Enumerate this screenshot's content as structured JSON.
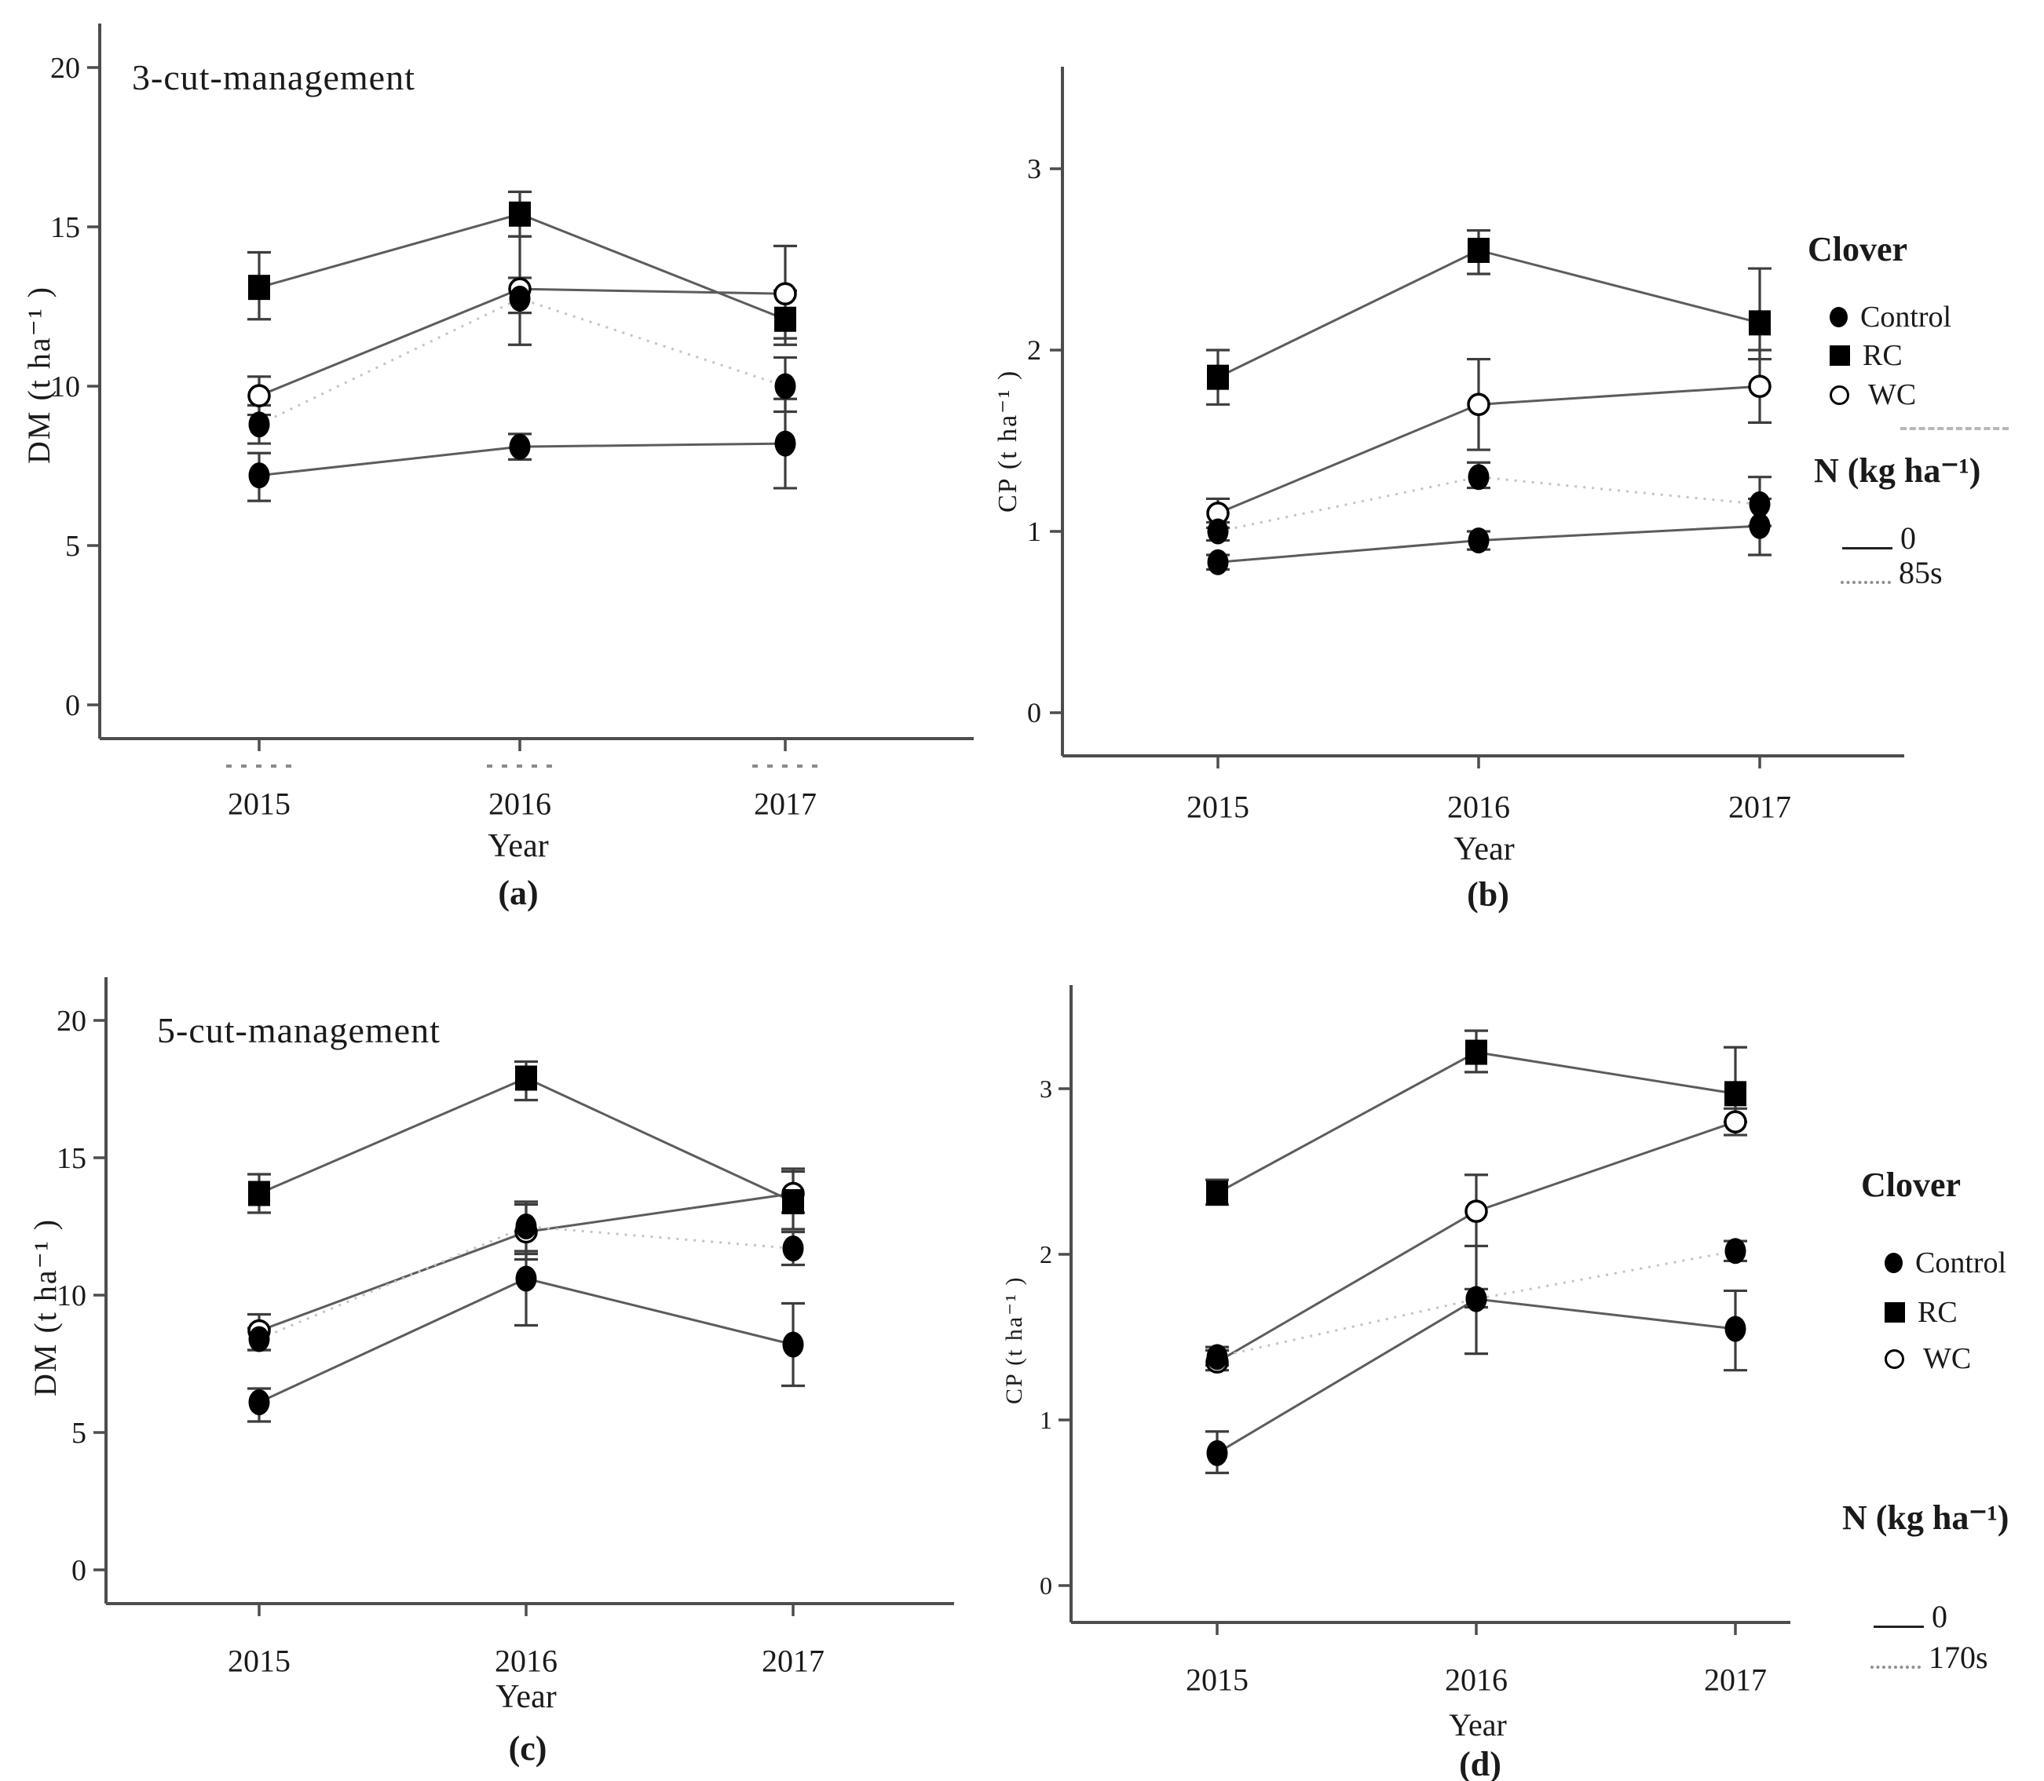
{
  "colors": {
    "axis": "#4d4d4d",
    "solid_line": "#5c5c5c",
    "dotted_line": "#c4c4c4",
    "error_bar": "#3d3d3d",
    "marker": "#000000",
    "artifact": "#8a8a8a"
  },
  "legends": {
    "b": {
      "clover_heading": "Clover",
      "control": "Control",
      "rc": "RC",
      "wc": "WC",
      "n_heading": "N (kg ha⁻¹)",
      "n0": "0",
      "ns": "85s"
    },
    "d": {
      "clover_heading": "Clover",
      "control": "Control",
      "rc": "RC",
      "wc": "WC",
      "n_heading": "N (kg ha⁻¹)",
      "n0": "0",
      "ns": "170s"
    }
  },
  "chart_data": [
    {
      "id": "a",
      "type": "line",
      "title": "3-cut-management",
      "xlabel": "Year",
      "ylabel": "DM (t ha⁻¹ )",
      "caption": "(a)",
      "categories": [
        "2015",
        "2016",
        "2017"
      ],
      "yticks": [
        0,
        5,
        10,
        15,
        20
      ],
      "ylim": [
        0,
        21
      ],
      "grid": false,
      "legend_position": "none",
      "series": [
        {
          "name": "RC, 0 N",
          "clover": "RC",
          "n_rate": "0",
          "marker": "filled-square",
          "line": "solid",
          "values": [
            13.1,
            15.4,
            12.1
          ],
          "err_low": [
            12.1,
            14.7,
            11.3
          ],
          "err_high": [
            14.2,
            16.1,
            13.0
          ]
        },
        {
          "name": "WC, 0 N",
          "clover": "WC",
          "n_rate": "0",
          "marker": "open-circle",
          "line": "solid",
          "values": [
            9.7,
            13.05,
            12.9
          ],
          "err_low": [
            9.1,
            11.3,
            11.5
          ],
          "err_high": [
            10.3,
            14.7,
            14.4
          ]
        },
        {
          "name": "Control, 85s N",
          "clover": "Control",
          "n_rate": "85s",
          "marker": "filled-circle",
          "line": "dotted",
          "values": [
            8.8,
            12.75,
            10.0
          ],
          "err_low": [
            8.2,
            12.3,
            9.2
          ],
          "err_high": [
            9.4,
            13.4,
            10.9
          ]
        },
        {
          "name": "Control, 0 N",
          "clover": "Control",
          "n_rate": "0",
          "marker": "filled-circle",
          "line": "solid",
          "values": [
            7.2,
            8.1,
            8.2
          ],
          "err_low": [
            6.4,
            7.7,
            6.8
          ],
          "err_high": [
            7.9,
            8.5,
            9.6
          ]
        }
      ]
    },
    {
      "id": "b",
      "type": "line",
      "title": "",
      "xlabel": "Year",
      "ylabel": "CP (t ha⁻¹ )",
      "caption": "(b)",
      "categories": [
        "2015",
        "2016",
        "2017"
      ],
      "yticks": [
        0,
        1,
        2,
        3
      ],
      "ylim": [
        0,
        3.5
      ],
      "grid": false,
      "legend_position": "right",
      "series": [
        {
          "name": "RC, 0 N",
          "clover": "RC",
          "n_rate": "0",
          "marker": "filled-square",
          "line": "solid",
          "values": [
            1.85,
            2.55,
            2.15
          ],
          "err_low": [
            1.7,
            2.42,
            1.95
          ],
          "err_high": [
            2.0,
            2.66,
            2.45
          ]
        },
        {
          "name": "WC, 0 N",
          "clover": "WC",
          "n_rate": "0",
          "marker": "open-circle",
          "line": "solid",
          "values": [
            1.1,
            1.7,
            1.8
          ],
          "err_low": [
            1.02,
            1.45,
            1.6
          ],
          "err_high": [
            1.18,
            1.95,
            2.0
          ]
        },
        {
          "name": "Control, 85s N",
          "clover": "Control",
          "n_rate": "85s",
          "marker": "filled-circle",
          "line": "dotted",
          "values": [
            1.0,
            1.3,
            1.15
          ],
          "err_low": [
            0.95,
            1.24,
            1.03
          ],
          "err_high": [
            1.05,
            1.38,
            1.3
          ]
        },
        {
          "name": "Control, 0 N",
          "clover": "Control",
          "n_rate": "0",
          "marker": "filled-circle",
          "line": "solid",
          "values": [
            0.83,
            0.95,
            1.03
          ],
          "err_low": [
            0.79,
            0.9,
            0.87
          ],
          "err_high": [
            0.87,
            1.0,
            1.18
          ]
        }
      ]
    },
    {
      "id": "c",
      "type": "line",
      "title": "5-cut-management",
      "xlabel": "Year",
      "ylabel": "DM (t ha⁻¹ )",
      "caption": "(c)",
      "categories": [
        "2015",
        "2016",
        "2017"
      ],
      "yticks": [
        0,
        5,
        10,
        15,
        20
      ],
      "ylim": [
        0,
        21
      ],
      "grid": false,
      "legend_position": "none",
      "series": [
        {
          "name": "RC, 0 N",
          "clover": "RC",
          "n_rate": "0",
          "marker": "filled-square",
          "line": "solid",
          "values": [
            13.7,
            17.9,
            13.4
          ],
          "err_low": [
            13.0,
            17.1,
            12.4
          ],
          "err_high": [
            14.4,
            18.5,
            14.5
          ]
        },
        {
          "name": "WC, 0 N",
          "clover": "WC",
          "n_rate": "0",
          "marker": "open-circle",
          "line": "solid",
          "values": [
            8.7,
            12.3,
            13.7
          ],
          "err_low": [
            8.0,
            11.3,
            13.0
          ],
          "err_high": [
            9.3,
            13.3,
            14.6
          ]
        },
        {
          "name": "Control, 170s N",
          "clover": "Control",
          "n_rate": "170s",
          "marker": "filled-circle",
          "line": "dotted",
          "values": [
            8.4,
            12.5,
            11.7
          ],
          "err_low": [
            8.0,
            11.6,
            11.1
          ],
          "err_high": [
            8.8,
            13.4,
            12.3
          ]
        },
        {
          "name": "Control, 0 N",
          "clover": "Control",
          "n_rate": "0",
          "marker": "filled-circle",
          "line": "solid",
          "values": [
            6.1,
            10.6,
            8.2
          ],
          "err_low": [
            5.4,
            8.9,
            6.7
          ],
          "err_high": [
            6.6,
            11.5,
            9.7
          ]
        }
      ]
    },
    {
      "id": "d",
      "type": "line",
      "title": "",
      "xlabel": "Year",
      "ylabel": "CP (t ha⁻¹ )",
      "caption": "(d)",
      "categories": [
        "2015",
        "2016",
        "2017"
      ],
      "yticks": [
        0,
        1,
        2,
        3
      ],
      "ylim": [
        0,
        3.6
      ],
      "grid": false,
      "legend_position": "right",
      "series": [
        {
          "name": "RC, 0 N",
          "clover": "RC",
          "n_rate": "0",
          "marker": "filled-square",
          "line": "solid",
          "values": [
            2.37,
            3.22,
            2.97
          ],
          "err_low": [
            2.3,
            3.1,
            2.8
          ],
          "err_high": [
            2.45,
            3.35,
            3.25
          ]
        },
        {
          "name": "WC, 0 N",
          "clover": "WC",
          "n_rate": "0",
          "marker": "open-circle",
          "line": "solid",
          "values": [
            1.35,
            2.26,
            2.8
          ],
          "err_low": [
            1.3,
            2.05,
            2.72
          ],
          "err_high": [
            1.42,
            2.48,
            2.88
          ]
        },
        {
          "name": "Control, 170s N",
          "clover": "Control",
          "n_rate": "170s",
          "marker": "filled-circle",
          "line": "dotted",
          "values": [
            1.38,
            1.73,
            2.02
          ],
          "err_low": [
            1.33,
            1.68,
            1.96
          ],
          "err_high": [
            1.44,
            1.79,
            2.08
          ]
        },
        {
          "name": "Control, 0 N",
          "clover": "Control",
          "n_rate": "0",
          "marker": "filled-circle",
          "line": "solid",
          "values": [
            0.8,
            1.73,
            1.55
          ],
          "err_low": [
            0.68,
            1.4,
            1.3
          ],
          "err_high": [
            0.93,
            2.05,
            1.78
          ]
        }
      ]
    }
  ]
}
